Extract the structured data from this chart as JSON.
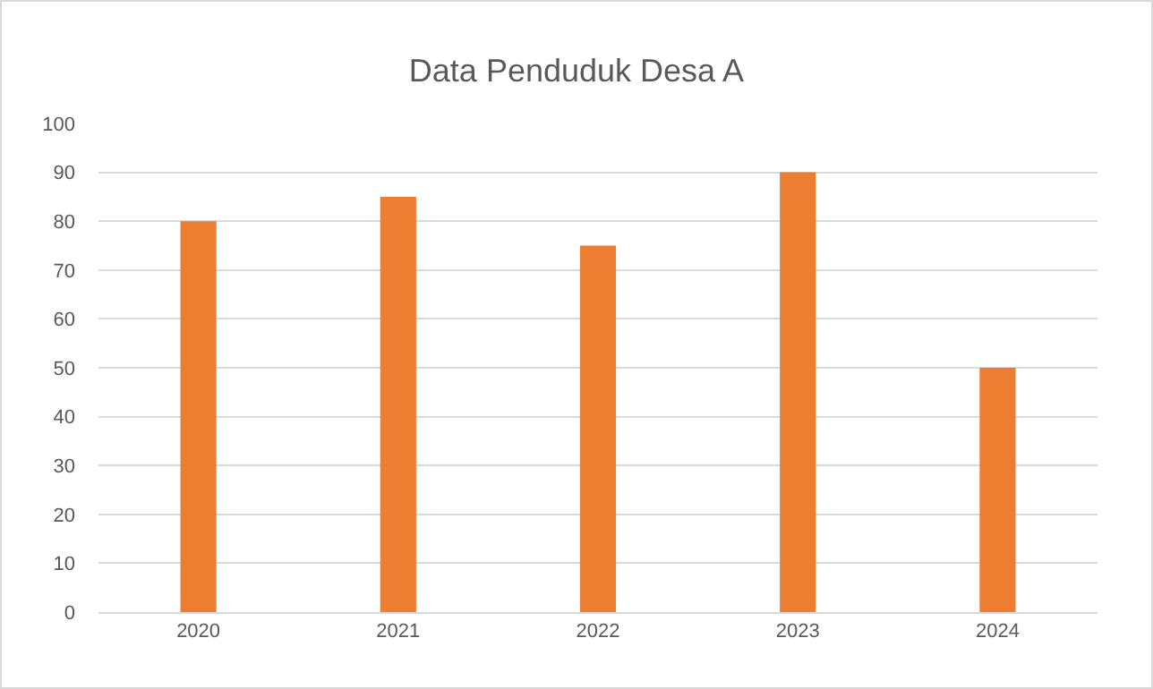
{
  "chart_data": {
    "type": "bar",
    "title": "Data Penduduk Desa A",
    "categories": [
      "2020",
      "2021",
      "2022",
      "2023",
      "2024"
    ],
    "values": [
      80,
      85,
      75,
      90,
      50
    ],
    "color": "#ed7d31",
    "ylim": [
      0,
      100
    ],
    "yticks": [
      0,
      10,
      20,
      30,
      40,
      50,
      60,
      70,
      80,
      90,
      100
    ],
    "grid": "y"
  }
}
